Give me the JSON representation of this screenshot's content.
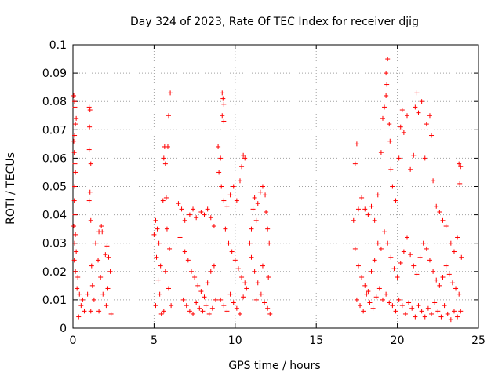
{
  "chart_data": {
    "type": "scatter",
    "title": "Day 324 of 2023, Rate Of TEC Index for receiver djig",
    "xlabel": "GPS time / hours",
    "ylabel": "ROTI / TECUs",
    "xlim": [
      0,
      25
    ],
    "ylim": [
      0,
      0.1
    ],
    "x_ticks": [
      "0",
      "5",
      "10",
      "15",
      "20",
      "25"
    ],
    "y_ticks": [
      "0",
      "0.01",
      "0.02",
      "0.03",
      "0.04",
      "0.05",
      "0.06",
      "0.07",
      "0.08",
      "0.09",
      "0.1"
    ],
    "grid": true,
    "marker": "+",
    "color": "#ff0000",
    "series": [
      {
        "values_note_free": true,
        "points": [
          [
            0.05,
            0.082
          ],
          [
            0.1,
            0.08
          ],
          [
            0.12,
            0.078
          ],
          [
            0.2,
            0.074
          ],
          [
            0.15,
            0.072
          ],
          [
            0.1,
            0.068
          ],
          [
            0.05,
            0.066
          ],
          [
            0.08,
            0.062
          ],
          [
            0.12,
            0.058
          ],
          [
            0.15,
            0.055
          ],
          [
            0.1,
            0.05
          ],
          [
            0.08,
            0.045
          ],
          [
            0.12,
            0.04
          ],
          [
            0.05,
            0.036
          ],
          [
            0.15,
            0.033
          ],
          [
            0.1,
            0.03
          ],
          [
            0.2,
            0.027
          ],
          [
            0.08,
            0.024
          ],
          [
            0.15,
            0.02
          ],
          [
            0.3,
            0.018
          ],
          [
            0.25,
            0.014
          ],
          [
            0.4,
            0.012
          ],
          [
            0.6,
            0.01
          ],
          [
            0.5,
            0.008
          ],
          [
            0.7,
            0.006
          ],
          [
            0.35,
            0.004
          ],
          [
            0.9,
            0.012
          ],
          [
            1.0,
            0.078
          ],
          [
            1.05,
            0.077
          ],
          [
            1.02,
            0.071
          ],
          [
            1.0,
            0.063
          ],
          [
            1.1,
            0.058
          ],
          [
            1.05,
            0.048
          ],
          [
            1.0,
            0.045
          ],
          [
            1.1,
            0.038
          ],
          [
            1.15,
            0.022
          ],
          [
            1.2,
            0.015
          ],
          [
            1.3,
            0.01
          ],
          [
            1.1,
            0.006
          ],
          [
            1.4,
            0.03
          ],
          [
            1.6,
            0.034
          ],
          [
            1.75,
            0.036
          ],
          [
            1.8,
            0.034
          ],
          [
            1.55,
            0.024
          ],
          [
            1.7,
            0.018
          ],
          [
            1.85,
            0.012
          ],
          [
            1.6,
            0.006
          ],
          [
            2.0,
            0.026
          ],
          [
            2.1,
            0.029
          ],
          [
            2.2,
            0.025
          ],
          [
            2.3,
            0.02
          ],
          [
            2.15,
            0.014
          ],
          [
            2.05,
            0.008
          ],
          [
            2.35,
            0.005
          ],
          [
            5.0,
            0.033
          ],
          [
            5.1,
            0.038
          ],
          [
            5.2,
            0.035
          ],
          [
            5.3,
            0.03
          ],
          [
            5.15,
            0.025
          ],
          [
            5.4,
            0.022
          ],
          [
            5.25,
            0.017
          ],
          [
            5.35,
            0.012
          ],
          [
            5.1,
            0.008
          ],
          [
            5.45,
            0.005
          ],
          [
            5.55,
            0.045
          ],
          [
            5.6,
            0.06
          ],
          [
            5.7,
            0.058
          ],
          [
            5.65,
            0.064
          ],
          [
            5.85,
            0.064
          ],
          [
            5.9,
            0.075
          ],
          [
            6.0,
            0.083
          ],
          [
            5.75,
            0.046
          ],
          [
            5.8,
            0.035
          ],
          [
            5.95,
            0.028
          ],
          [
            5.7,
            0.02
          ],
          [
            5.9,
            0.014
          ],
          [
            6.05,
            0.008
          ],
          [
            5.6,
            0.006
          ],
          [
            6.5,
            0.044
          ],
          [
            6.7,
            0.042
          ],
          [
            6.9,
            0.038
          ],
          [
            7.2,
            0.04
          ],
          [
            7.4,
            0.042
          ],
          [
            7.6,
            0.039
          ],
          [
            7.9,
            0.041
          ],
          [
            8.1,
            0.04
          ],
          [
            8.3,
            0.042
          ],
          [
            8.5,
            0.039
          ],
          [
            8.7,
            0.036
          ],
          [
            6.6,
            0.032
          ],
          [
            6.9,
            0.027
          ],
          [
            7.1,
            0.024
          ],
          [
            7.3,
            0.02
          ],
          [
            7.5,
            0.018
          ],
          [
            7.7,
            0.015
          ],
          [
            7.9,
            0.013
          ],
          [
            8.1,
            0.011
          ],
          [
            8.3,
            0.016
          ],
          [
            8.5,
            0.02
          ],
          [
            8.7,
            0.022
          ],
          [
            6.8,
            0.01
          ],
          [
            7.0,
            0.008
          ],
          [
            7.2,
            0.006
          ],
          [
            7.4,
            0.005
          ],
          [
            7.6,
            0.009
          ],
          [
            7.8,
            0.007
          ],
          [
            8.0,
            0.006
          ],
          [
            8.2,
            0.008
          ],
          [
            8.4,
            0.005
          ],
          [
            8.6,
            0.007
          ],
          [
            8.8,
            0.01
          ],
          [
            8.95,
            0.064
          ],
          [
            9.1,
            0.06
          ],
          [
            9.2,
            0.083
          ],
          [
            9.25,
            0.081
          ],
          [
            9.3,
            0.079
          ],
          [
            9.2,
            0.075
          ],
          [
            9.3,
            0.073
          ],
          [
            9.0,
            0.055
          ],
          [
            9.15,
            0.05
          ],
          [
            9.3,
            0.045
          ],
          [
            9.5,
            0.043
          ],
          [
            9.7,
            0.047
          ],
          [
            9.9,
            0.05
          ],
          [
            10.1,
            0.045
          ],
          [
            10.3,
            0.052
          ],
          [
            10.5,
            0.061
          ],
          [
            10.6,
            0.06
          ],
          [
            10.4,
            0.057
          ],
          [
            9.4,
            0.035
          ],
          [
            9.6,
            0.03
          ],
          [
            9.8,
            0.027
          ],
          [
            10.0,
            0.024
          ],
          [
            10.2,
            0.021
          ],
          [
            10.4,
            0.018
          ],
          [
            10.6,
            0.016
          ],
          [
            9.1,
            0.01
          ],
          [
            9.3,
            0.008
          ],
          [
            9.5,
            0.006
          ],
          [
            9.7,
            0.012
          ],
          [
            9.9,
            0.009
          ],
          [
            10.1,
            0.007
          ],
          [
            10.3,
            0.005
          ],
          [
            10.5,
            0.011
          ],
          [
            10.7,
            0.014
          ],
          [
            10.9,
            0.03
          ],
          [
            11.0,
            0.035
          ],
          [
            11.1,
            0.042
          ],
          [
            11.2,
            0.046
          ],
          [
            11.3,
            0.038
          ],
          [
            11.4,
            0.044
          ],
          [
            11.55,
            0.048
          ],
          [
            11.7,
            0.05
          ],
          [
            11.85,
            0.047
          ],
          [
            11.9,
            0.041
          ],
          [
            12.0,
            0.035
          ],
          [
            12.1,
            0.03
          ],
          [
            11.0,
            0.025
          ],
          [
            11.2,
            0.02
          ],
          [
            11.4,
            0.016
          ],
          [
            11.6,
            0.012
          ],
          [
            11.8,
            0.009
          ],
          [
            12.0,
            0.007
          ],
          [
            12.15,
            0.005
          ],
          [
            11.3,
            0.01
          ],
          [
            11.7,
            0.022
          ],
          [
            12.05,
            0.018
          ],
          [
            17.3,
            0.038
          ],
          [
            17.5,
            0.065
          ],
          [
            17.4,
            0.058
          ],
          [
            17.6,
            0.042
          ],
          [
            17.8,
            0.046
          ],
          [
            18.0,
            0.042
          ],
          [
            18.2,
            0.04
          ],
          [
            18.4,
            0.043
          ],
          [
            18.6,
            0.038
          ],
          [
            18.8,
            0.047
          ],
          [
            19.0,
            0.062
          ],
          [
            19.1,
            0.074
          ],
          [
            19.2,
            0.078
          ],
          [
            19.3,
            0.082
          ],
          [
            19.35,
            0.086
          ],
          [
            19.3,
            0.09
          ],
          [
            19.4,
            0.095
          ],
          [
            19.5,
            0.072
          ],
          [
            19.55,
            0.066
          ],
          [
            19.6,
            0.056
          ],
          [
            19.7,
            0.05
          ],
          [
            19.9,
            0.045
          ],
          [
            20.1,
            0.06
          ],
          [
            20.2,
            0.071
          ],
          [
            20.3,
            0.077
          ],
          [
            20.4,
            0.069
          ],
          [
            20.6,
            0.075
          ],
          [
            20.8,
            0.056
          ],
          [
            21.0,
            0.061
          ],
          [
            21.1,
            0.078
          ],
          [
            21.2,
            0.083
          ],
          [
            21.3,
            0.076
          ],
          [
            21.5,
            0.08
          ],
          [
            21.7,
            0.06
          ],
          [
            21.8,
            0.072
          ],
          [
            22.0,
            0.075
          ],
          [
            22.1,
            0.068
          ],
          [
            22.2,
            0.052
          ],
          [
            22.4,
            0.043
          ],
          [
            22.6,
            0.041
          ],
          [
            22.8,
            0.038
          ],
          [
            23.0,
            0.036
          ],
          [
            23.3,
            0.03
          ],
          [
            23.5,
            0.027
          ],
          [
            23.7,
            0.032
          ],
          [
            23.8,
            0.058
          ],
          [
            23.9,
            0.057
          ],
          [
            23.85,
            0.051
          ],
          [
            23.95,
            0.025
          ],
          [
            17.4,
            0.028
          ],
          [
            17.6,
            0.022
          ],
          [
            17.8,
            0.018
          ],
          [
            18.0,
            0.015
          ],
          [
            18.2,
            0.013
          ],
          [
            18.4,
            0.02
          ],
          [
            18.6,
            0.024
          ],
          [
            18.8,
            0.03
          ],
          [
            19.0,
            0.028
          ],
          [
            19.2,
            0.034
          ],
          [
            19.4,
            0.03
          ],
          [
            19.6,
            0.025
          ],
          [
            19.8,
            0.021
          ],
          [
            20.0,
            0.018
          ],
          [
            20.2,
            0.023
          ],
          [
            20.4,
            0.027
          ],
          [
            20.6,
            0.032
          ],
          [
            20.8,
            0.026
          ],
          [
            21.0,
            0.022
          ],
          [
            21.2,
            0.019
          ],
          [
            21.4,
            0.025
          ],
          [
            21.6,
            0.03
          ],
          [
            21.8,
            0.028
          ],
          [
            22.0,
            0.024
          ],
          [
            22.2,
            0.02
          ],
          [
            22.4,
            0.017
          ],
          [
            22.6,
            0.015
          ],
          [
            22.8,
            0.018
          ],
          [
            23.0,
            0.022
          ],
          [
            23.2,
            0.019
          ],
          [
            23.4,
            0.016
          ],
          [
            23.6,
            0.014
          ],
          [
            23.8,
            0.012
          ],
          [
            17.5,
            0.01
          ],
          [
            17.7,
            0.008
          ],
          [
            17.9,
            0.006
          ],
          [
            18.1,
            0.012
          ],
          [
            18.3,
            0.009
          ],
          [
            18.5,
            0.007
          ],
          [
            18.7,
            0.011
          ],
          [
            18.9,
            0.014
          ],
          [
            19.1,
            0.01
          ],
          [
            19.3,
            0.012
          ],
          [
            19.5,
            0.009
          ],
          [
            19.7,
            0.008
          ],
          [
            19.9,
            0.006
          ],
          [
            20.1,
            0.01
          ],
          [
            20.3,
            0.008
          ],
          [
            20.5,
            0.005
          ],
          [
            20.7,
            0.009
          ],
          [
            20.9,
            0.007
          ],
          [
            21.1,
            0.004
          ],
          [
            21.3,
            0.008
          ],
          [
            21.5,
            0.006
          ],
          [
            21.7,
            0.004
          ],
          [
            21.9,
            0.007
          ],
          [
            22.1,
            0.005
          ],
          [
            22.3,
            0.009
          ],
          [
            22.5,
            0.006
          ],
          [
            22.7,
            0.004
          ],
          [
            22.9,
            0.008
          ],
          [
            23.1,
            0.005
          ],
          [
            23.3,
            0.003
          ],
          [
            23.5,
            0.006
          ],
          [
            23.7,
            0.004
          ],
          [
            23.9,
            0.006
          ]
        ]
      }
    ]
  }
}
